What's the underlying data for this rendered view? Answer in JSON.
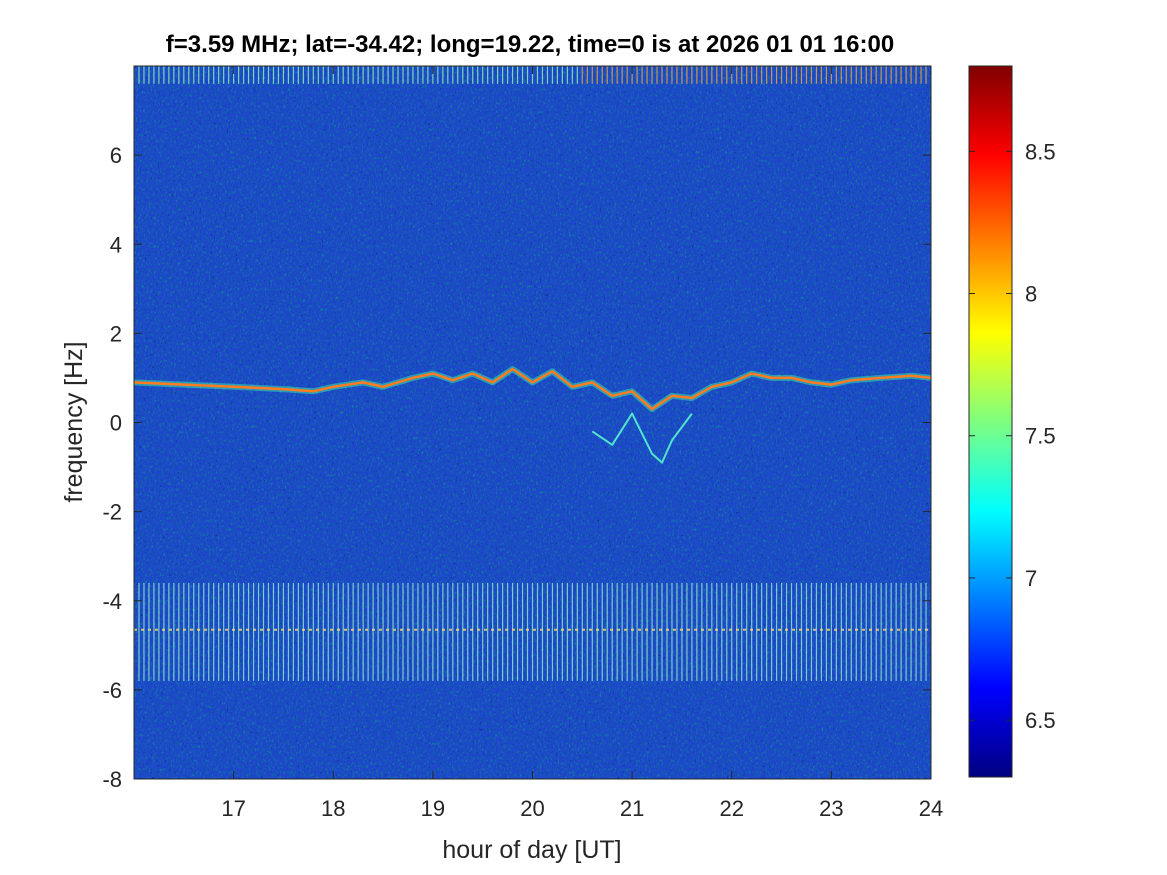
{
  "chart_data": {
    "type": "heatmap",
    "title": "f=3.59 MHz;  lat=-34.42; long=19.22, time=0 is at 2026 01 01 16:00",
    "xlabel": "hour of day [UT]",
    "ylabel": "frequency [Hz]",
    "xlim": [
      16,
      24
    ],
    "ylim": [
      -8,
      8
    ],
    "x_ticks": [
      "17",
      "18",
      "19",
      "20",
      "21",
      "22",
      "23",
      "24"
    ],
    "y_ticks": [
      "-8",
      "-6",
      "-4",
      "-2",
      "0",
      "2",
      "4",
      "6"
    ],
    "colorbar": {
      "colormap": "jet",
      "clim": [
        6.3,
        8.8
      ],
      "ticks": [
        "6.5",
        "7",
        "7.5",
        "8",
        "8.5"
      ]
    },
    "features": {
      "doppler_trace": {
        "x": [
          16.0,
          16.5,
          17.0,
          17.5,
          17.8,
          18.0,
          18.3,
          18.5,
          18.8,
          19.0,
          19.2,
          19.4,
          19.6,
          19.8,
          20.0,
          20.2,
          20.4,
          20.6,
          20.8,
          21.0,
          21.2,
          21.4,
          21.6,
          21.8,
          22.0,
          22.2,
          22.4,
          22.6,
          22.8,
          23.0,
          23.2,
          23.5,
          23.8,
          24.0
        ],
        "y": [
          0.9,
          0.85,
          0.8,
          0.75,
          0.7,
          0.8,
          0.9,
          0.8,
          1.0,
          1.1,
          0.95,
          1.1,
          0.9,
          1.2,
          0.9,
          1.15,
          0.8,
          0.9,
          0.6,
          0.7,
          0.3,
          0.6,
          0.55,
          0.8,
          0.9,
          1.1,
          1.0,
          1.0,
          0.9,
          0.85,
          0.95,
          1.0,
          1.05,
          1.0
        ]
      },
      "spread_feature": {
        "x": [
          20.6,
          20.8,
          21.0,
          21.2,
          21.3,
          21.4,
          21.6
        ],
        "y": [
          -0.2,
          -0.5,
          0.2,
          -0.7,
          -0.9,
          -0.4,
          0.2
        ]
      },
      "interference_band_upper": {
        "y_range": [
          7.6,
          8.0
        ],
        "hour_step": 0.05
      },
      "interference_band_lower": {
        "y_range": [
          -5.8,
          -3.6
        ],
        "line_y": -4.65
      }
    }
  }
}
